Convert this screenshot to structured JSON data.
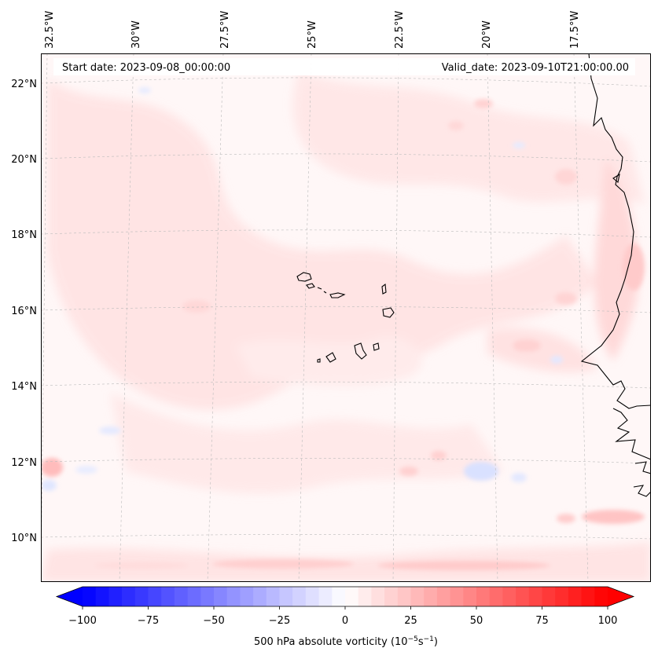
{
  "header": {
    "start_date": "Start date: 2023-09-08_00:00:00",
    "valid_date": "Valid_date: 2023-09-10T21:00:00.00"
  },
  "map": {
    "lon_labels": [
      "32.5°W",
      "30°W",
      "27.5°W",
      "25°W",
      "22.5°W",
      "20°W",
      "17.5°W"
    ],
    "lat_labels": [
      "22°N",
      "20°N",
      "18°N",
      "16°N",
      "14°N",
      "12°N",
      "10°N"
    ],
    "field_name": "500 hPa absolute vorticity",
    "islands": "Cabo Verde archipelago",
    "coastline": "West African coast"
  },
  "colorbar": {
    "ticks": [
      "−100",
      "−75",
      "−50",
      "−25",
      "0",
      "25",
      "50",
      "75",
      "100"
    ],
    "label": "500 hPa absolute vorticity (10",
    "label_exp1": "−5",
    "label_mid": "s",
    "label_exp2": "−1",
    "label_end": ")",
    "range": [
      -100,
      100
    ],
    "levels": 41,
    "colormap": "bwr",
    "color_min": "#0000ff",
    "color_mid": "#ffffff",
    "color_max": "#ff0000"
  }
}
